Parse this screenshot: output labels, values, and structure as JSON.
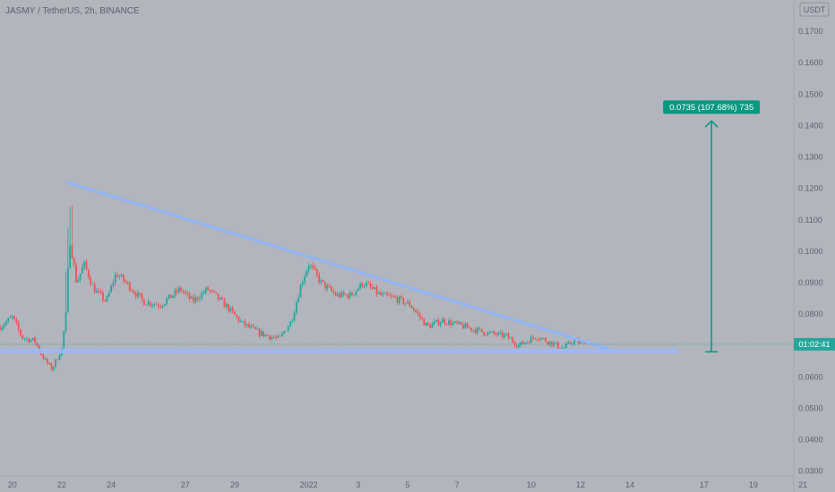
{
  "header": {
    "title": "JASMY / TetherUS, 2h, BINANCE",
    "currency_badge": "USDT"
  },
  "colors": {
    "background": "#b2b5be",
    "up": "#26a69a",
    "down": "#ef5350",
    "trendline": "#90b4f8",
    "support_zone": "#9fb8f2",
    "measure": "#089981",
    "price_label_bg": "#26a69a"
  },
  "price_tag": "01:02:41",
  "measure_label": "0.0735 (107.68%) 735",
  "chart_data": {
    "type": "candlestick",
    "title": "JASMY / TetherUS, 2h, BINANCE",
    "ylim": [
      0.0285,
      0.18
    ],
    "y_ticks": [
      0.17,
      0.16,
      0.15,
      0.14,
      0.13,
      0.12,
      0.11,
      0.1,
      0.09,
      0.08,
      0.07,
      0.06,
      0.05,
      0.04,
      0.03
    ],
    "y_tick_labels": [
      "0.1700",
      "0.1600",
      "0.1500",
      "0.1400",
      "0.1300",
      "0.1200",
      "0.1100",
      "0.1000",
      "0.0900",
      "0.0800",
      "0.0700",
      "0.0600",
      "0.0500",
      "0.0400",
      "0.0300"
    ],
    "x_ticks": [
      "20",
      "22",
      "24",
      "27",
      "29",
      "2022",
      "3",
      "5",
      "7",
      "10",
      "12",
      "14",
      "17",
      "19",
      "21"
    ],
    "x_tick_day_offsets": [
      0,
      2,
      4,
      7,
      9,
      12,
      14,
      16,
      18,
      21,
      23,
      25,
      28,
      30,
      32
    ],
    "x_domain_days": [
      -0.5,
      33.3
    ],
    "last_price": 0.0704,
    "price_path": [
      [
        -0.5,
        0.076
      ],
      [
        0.0,
        0.079
      ],
      [
        0.4,
        0.0725
      ],
      [
        0.9,
        0.0715
      ],
      [
        1.3,
        0.0655
      ],
      [
        1.6,
        0.0625
      ],
      [
        2.0,
        0.069
      ],
      [
        2.2,
        0.082
      ],
      [
        2.3,
        0.105
      ],
      [
        2.6,
        0.09
      ],
      [
        2.9,
        0.096
      ],
      [
        3.3,
        0.088
      ],
      [
        3.8,
        0.084
      ],
      [
        4.2,
        0.093
      ],
      [
        4.6,
        0.09
      ],
      [
        5.3,
        0.084
      ],
      [
        6.0,
        0.083
      ],
      [
        6.8,
        0.088
      ],
      [
        7.3,
        0.084
      ],
      [
        7.9,
        0.088
      ],
      [
        8.6,
        0.083
      ],
      [
        9.3,
        0.077
      ],
      [
        10.0,
        0.074
      ],
      [
        10.8,
        0.072
      ],
      [
        11.3,
        0.078
      ],
      [
        11.7,
        0.09
      ],
      [
        12.0,
        0.096
      ],
      [
        12.5,
        0.09
      ],
      [
        13.1,
        0.086
      ],
      [
        13.7,
        0.086
      ],
      [
        14.2,
        0.09
      ],
      [
        14.9,
        0.086
      ],
      [
        15.5,
        0.085
      ],
      [
        16.1,
        0.083
      ],
      [
        16.8,
        0.076
      ],
      [
        17.4,
        0.078
      ],
      [
        18.3,
        0.076
      ],
      [
        19.2,
        0.074
      ],
      [
        20.0,
        0.073
      ],
      [
        20.5,
        0.07
      ],
      [
        21.2,
        0.073
      ],
      [
        21.9,
        0.0705
      ],
      [
        22.3,
        0.069
      ],
      [
        22.7,
        0.0715
      ],
      [
        23.2,
        0.0704
      ]
    ],
    "trendline": {
      "from": [
        2.2,
        0.122
      ],
      "to": [
        24.1,
        0.069
      ]
    },
    "support_zone": {
      "from_day": -0.5,
      "to_day": 27.0,
      "low": 0.0675,
      "high": 0.069
    },
    "measure": {
      "day": 28.3,
      "from": 0.068,
      "to": 0.1415,
      "label": "0.0735 (107.68%) 735"
    },
    "grid": false,
    "legend": "none"
  }
}
